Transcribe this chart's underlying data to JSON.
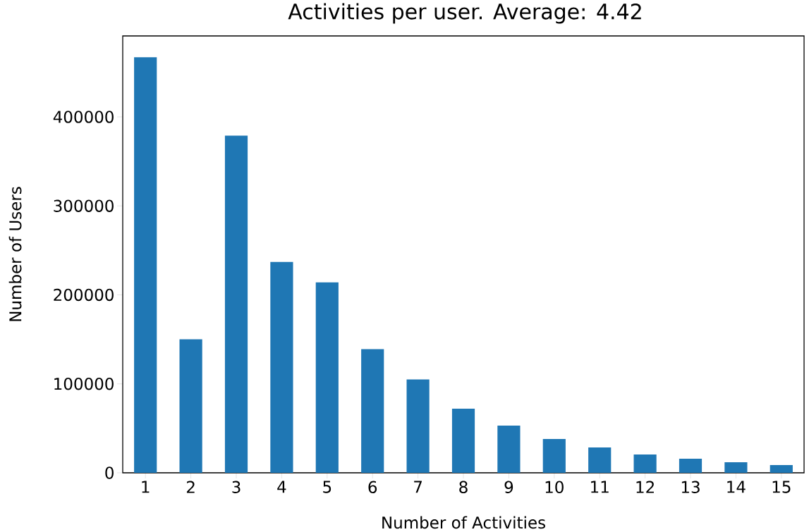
{
  "chart_data": {
    "type": "bar",
    "title": "Activities per user. Average: 4.42",
    "xlabel": "Number of Activities",
    "ylabel": "Number of Users",
    "categories": [
      "1",
      "2",
      "3",
      "4",
      "5",
      "6",
      "7",
      "8",
      "9",
      "10",
      "11",
      "12",
      "13",
      "14",
      "15"
    ],
    "values": [
      467000,
      150000,
      379000,
      237000,
      214000,
      139000,
      105000,
      72000,
      53000,
      38000,
      28500,
      20600,
      15800,
      11900,
      8700
    ],
    "color": "#1f77b4",
    "ylim": [
      0,
      491000
    ],
    "yticks": [
      0,
      100000,
      200000,
      300000,
      400000
    ],
    "grid": false
  }
}
